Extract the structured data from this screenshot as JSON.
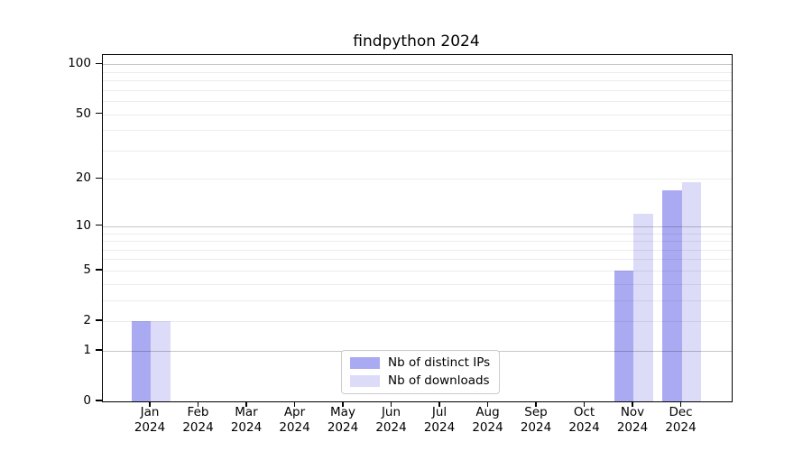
{
  "chart_data": {
    "type": "bar",
    "title": "findpython 2024",
    "categories": [
      {
        "month": "Jan",
        "year": "2024"
      },
      {
        "month": "Feb",
        "year": "2024"
      },
      {
        "month": "Mar",
        "year": "2024"
      },
      {
        "month": "Apr",
        "year": "2024"
      },
      {
        "month": "May",
        "year": "2024"
      },
      {
        "month": "Jun",
        "year": "2024"
      },
      {
        "month": "Jul",
        "year": "2024"
      },
      {
        "month": "Aug",
        "year": "2024"
      },
      {
        "month": "Sep",
        "year": "2024"
      },
      {
        "month": "Oct",
        "year": "2024"
      },
      {
        "month": "Nov",
        "year": "2024"
      },
      {
        "month": "Dec",
        "year": "2024"
      }
    ],
    "series": [
      {
        "name": "Nb of distinct IPs",
        "color": "#aaaaf2",
        "values": [
          2,
          0,
          0,
          0,
          0,
          0,
          0,
          0,
          0,
          0,
          5,
          17
        ]
      },
      {
        "name": "Nb of downloads",
        "color": "#dcdcf8",
        "values": [
          2,
          0,
          0,
          0,
          0,
          0,
          0,
          0,
          0,
          0,
          12,
          19
        ]
      }
    ],
    "yscale": "log1p",
    "ylim": [
      0,
      113
    ],
    "yticks": [
      0,
      1,
      2,
      5,
      10,
      20,
      50,
      100
    ],
    "major_gridlines": [
      1,
      10,
      100
    ],
    "minor_gridlines": [
      2,
      3,
      4,
      5,
      6,
      7,
      8,
      9,
      20,
      30,
      40,
      50,
      60,
      70,
      80,
      90
    ],
    "grid": true,
    "legend_position": "lower center",
    "colors": {
      "distinct_ips_bar": "#aaaaf2",
      "downloads_bar": "#dcdcf8",
      "major_grid": "#c8c8c8",
      "minor_grid": "#ebebeb",
      "axis": "#000000",
      "text": "#000000",
      "legend_border": "#cccccc",
      "background": "#ffffff"
    }
  }
}
